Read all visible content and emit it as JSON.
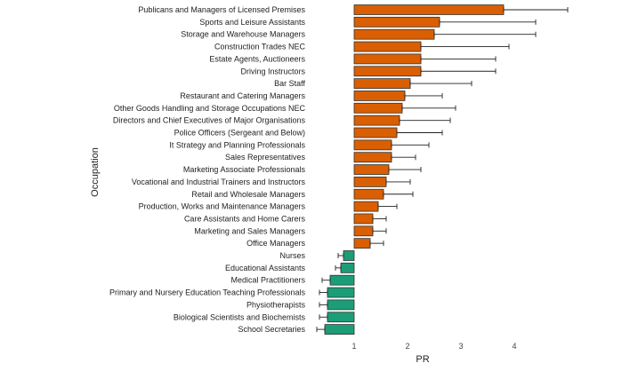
{
  "chart_data": {
    "type": "bar",
    "orientation": "horizontal",
    "xlabel": "PR",
    "ylabel": "Occupation",
    "xlim": [
      0.2,
      5.2
    ],
    "xticks": [
      "1",
      "2",
      "3",
      "4"
    ],
    "reference_line": 1,
    "grid": false,
    "colors": {
      "above": "#d95f02",
      "below": "#1b9e77"
    },
    "categories": [
      "Publicans and Managers of Licensed Premises",
      "Sports and Leisure Assistants",
      "Storage and Warehouse Managers",
      "Construction Trades NEC",
      "Estate Agents, Auctioneers",
      "Driving Instructors",
      "Bar Staff",
      "Restaurant and Catering Managers",
      "Other Goods Handling and Storage Occupations NEC",
      "Directors and Chief Executives of Major Organisations",
      "Police Officers (Sergeant and Below)",
      "It Strategy and Planning Professionals",
      "Sales Representatives",
      "Marketing Associate Professionals",
      "Vocational and Industrial Trainers and Instructors",
      "Retail and Wholesale Managers",
      "Production, Works and Maintenance Managers",
      "Care Assistants and Home Carers",
      "Marketing and Sales Managers",
      "Office Managers",
      "Nurses",
      "Educational Assistants",
      "Medical Practitioners",
      "Primary and Nursery Education Teaching Professionals",
      "Physiotherapists",
      "Biological Scientists and Biochemists",
      "School Secretaries"
    ],
    "values": [
      3.8,
      2.6,
      2.5,
      2.25,
      2.25,
      2.25,
      2.05,
      1.95,
      1.9,
      1.85,
      1.8,
      1.7,
      1.7,
      1.65,
      1.6,
      1.55,
      1.45,
      1.35,
      1.35,
      1.3,
      0.8,
      0.75,
      0.55,
      0.5,
      0.5,
      0.5,
      0.45
    ],
    "error_low": [
      3.8,
      2.6,
      2.5,
      2.25,
      2.25,
      2.25,
      2.05,
      1.95,
      1.9,
      1.85,
      1.8,
      1.7,
      1.7,
      1.65,
      1.6,
      1.55,
      1.45,
      1.35,
      1.35,
      1.3,
      0.7,
      0.65,
      0.4,
      0.35,
      0.35,
      0.35,
      0.3
    ],
    "error_high": [
      5.0,
      4.4,
      4.4,
      3.9,
      3.65,
      3.65,
      3.2,
      2.65,
      2.9,
      2.8,
      2.65,
      2.4,
      2.15,
      2.25,
      2.05,
      2.1,
      1.8,
      1.6,
      1.6,
      1.55,
      0.8,
      0.75,
      0.55,
      0.5,
      0.5,
      0.5,
      0.45
    ]
  }
}
